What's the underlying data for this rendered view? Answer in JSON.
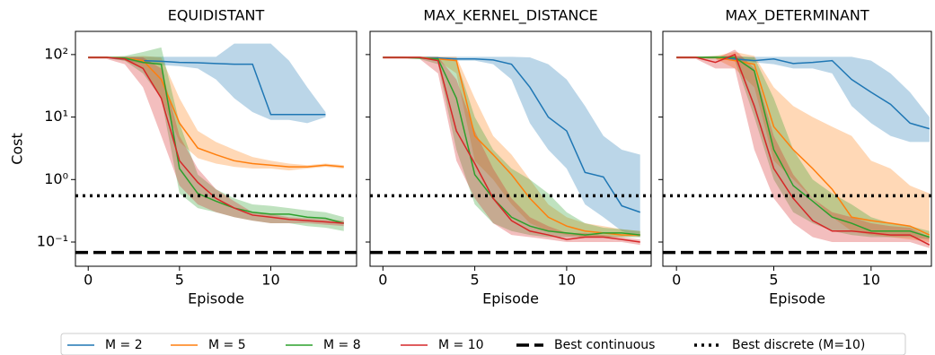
{
  "chart_data": [
    {
      "type": "line",
      "title": "EQUIDISTANT",
      "y_label": "Cost",
      "x_label": "Episode",
      "log_y": true,
      "x": [
        0,
        1,
        2,
        3,
        4,
        5,
        6,
        7,
        8,
        9,
        10,
        11,
        12,
        13,
        14
      ],
      "xlim": [
        -0.7,
        14.7
      ],
      "xticks": [
        0,
        5,
        10
      ],
      "ylim": [
        0.041,
        235
      ],
      "yticks": [
        {
          "value": 0.1,
          "label": "10⁻¹"
        },
        {
          "value": 1,
          "label": "10⁰"
        },
        {
          "value": 10,
          "label": "10¹"
        },
        {
          "value": 100,
          "label": "10²"
        }
      ],
      "hlines": [
        {
          "name": "Best continuous",
          "value": 0.068,
          "style": "dashed"
        },
        {
          "name": "Best discrete (M=10)",
          "value": 0.55,
          "style": "dotted"
        }
      ],
      "series": [
        {
          "name": "M = 2",
          "color": "#1f77b4",
          "values": [
            90,
            90,
            85,
            80,
            78,
            75,
            74,
            72,
            70,
            70,
            11,
            11,
            11,
            11,
            null
          ],
          "lower": [
            88,
            88,
            80,
            72,
            68,
            65,
            60,
            40,
            20,
            12,
            9,
            9,
            8,
            10,
            null
          ],
          "upper": [
            92,
            92,
            92,
            92,
            92,
            92,
            92,
            92,
            150,
            150,
            150,
            80,
            30,
            12,
            null
          ]
        },
        {
          "name": "M = 5",
          "color": "#ff7f0e",
          "values": [
            90,
            90,
            88,
            80,
            40,
            8,
            3.2,
            2.5,
            2,
            1.8,
            1.7,
            1.6,
            1.6,
            1.7,
            1.6
          ],
          "lower": [
            88,
            88,
            80,
            60,
            20,
            4,
            2.2,
            1.8,
            1.6,
            1.5,
            1.5,
            1.4,
            1.5,
            1.6,
            1.5
          ],
          "upper": [
            92,
            92,
            92,
            95,
            90,
            20,
            6,
            4,
            3,
            2.3,
            2,
            1.8,
            1.7,
            1.8,
            1.7
          ]
        },
        {
          "name": "M = 8",
          "color": "#2ca02c",
          "values": [
            90,
            90,
            88,
            75,
            70,
            1.5,
            0.6,
            0.45,
            0.35,
            0.3,
            0.28,
            0.28,
            0.25,
            0.24,
            0.2
          ],
          "lower": [
            88,
            88,
            80,
            50,
            20,
            0.6,
            0.35,
            0.3,
            0.25,
            0.22,
            0.2,
            0.2,
            0.18,
            0.17,
            0.15
          ],
          "upper": [
            92,
            92,
            95,
            110,
            130,
            8,
            1.2,
            0.7,
            0.5,
            0.4,
            0.38,
            0.35,
            0.32,
            0.3,
            0.25
          ]
        },
        {
          "name": "M = 10",
          "color": "#d62728",
          "values": [
            90,
            90,
            85,
            60,
            20,
            2,
            0.9,
            0.5,
            0.35,
            0.27,
            0.25,
            0.23,
            0.22,
            0.21,
            0.2
          ],
          "lower": [
            85,
            85,
            70,
            30,
            5,
            0.8,
            0.4,
            0.3,
            0.25,
            0.22,
            0.2,
            0.2,
            0.2,
            0.19,
            0.18
          ],
          "upper": [
            92,
            92,
            92,
            90,
            60,
            5,
            1.5,
            0.7,
            0.45,
            0.3,
            0.28,
            0.25,
            0.24,
            0.23,
            0.22
          ]
        }
      ]
    },
    {
      "type": "line",
      "title": "MAX_KERNEL_DISTANCE",
      "x_label": "Episode",
      "log_y": true,
      "x": [
        0,
        1,
        2,
        3,
        4,
        5,
        6,
        7,
        8,
        9,
        10,
        11,
        12,
        13,
        14
      ],
      "xlim": [
        -0.7,
        14.6
      ],
      "xticks": [
        0,
        5,
        10
      ],
      "ylim": [
        0.041,
        235
      ],
      "yticks": [
        0.1,
        1,
        10,
        100
      ],
      "hlines": [
        {
          "name": "Best continuous",
          "value": 0.068,
          "style": "dashed"
        },
        {
          "name": "Best discrete (M=10)",
          "value": 0.55,
          "style": "dotted"
        }
      ],
      "series": [
        {
          "name": "M = 2",
          "color": "#1f77b4",
          "values": [
            90,
            90,
            90,
            88,
            85,
            85,
            82,
            70,
            30,
            10,
            6,
            1.3,
            1.1,
            0.38,
            0.3
          ],
          "lower": [
            88,
            88,
            88,
            85,
            80,
            80,
            70,
            40,
            8,
            3,
            1.5,
            0.4,
            0.25,
            0.15,
            0.12
          ],
          "upper": [
            92,
            92,
            92,
            92,
            92,
            92,
            92,
            92,
            90,
            70,
            40,
            15,
            5,
            3,
            2.5
          ]
        },
        {
          "name": "M = 5",
          "color": "#ff7f0e",
          "values": [
            90,
            90,
            90,
            85,
            80,
            5,
            2.5,
            1.2,
            0.5,
            0.25,
            0.18,
            0.15,
            0.14,
            0.13,
            0.13
          ],
          "lower": [
            88,
            88,
            88,
            80,
            50,
            2,
            1,
            0.4,
            0.2,
            0.15,
            0.13,
            0.12,
            0.12,
            0.12,
            0.12
          ],
          "upper": [
            92,
            92,
            92,
            92,
            92,
            20,
            5,
            2.5,
            1,
            0.4,
            0.25,
            0.2,
            0.18,
            0.16,
            0.15
          ]
        },
        {
          "name": "M = 8",
          "color": "#2ca02c",
          "values": [
            90,
            90,
            88,
            85,
            20,
            1.2,
            0.5,
            0.25,
            0.18,
            0.15,
            0.14,
            0.13,
            0.14,
            0.14,
            0.13
          ],
          "lower": [
            88,
            88,
            85,
            70,
            3,
            0.4,
            0.2,
            0.15,
            0.13,
            0.12,
            0.12,
            0.12,
            0.12,
            0.12,
            0.12
          ],
          "upper": [
            92,
            92,
            92,
            92,
            80,
            10,
            3,
            1.5,
            1,
            0.6,
            0.3,
            0.2,
            0.17,
            0.16,
            0.15
          ]
        },
        {
          "name": "M = 10",
          "color": "#d62728",
          "values": [
            90,
            90,
            90,
            80,
            6,
            1.8,
            0.5,
            0.22,
            0.15,
            0.13,
            0.11,
            0.12,
            0.12,
            0.11,
            0.1
          ],
          "lower": [
            85,
            85,
            85,
            50,
            2,
            0.5,
            0.2,
            0.13,
            0.12,
            0.11,
            0.1,
            0.1,
            0.1,
            0.1,
            0.09
          ],
          "upper": [
            92,
            92,
            92,
            92,
            40,
            6,
            1.5,
            0.5,
            0.25,
            0.18,
            0.14,
            0.14,
            0.13,
            0.12,
            0.11
          ]
        }
      ]
    },
    {
      "type": "line",
      "title": "MAX_DETERMINANT",
      "x_label": "Episode",
      "log_y": true,
      "x": [
        0,
        1,
        2,
        3,
        4,
        5,
        6,
        7,
        8,
        9,
        10,
        11,
        12,
        13
      ],
      "xlim": [
        -0.7,
        13.1
      ],
      "xticks": [
        0,
        5,
        10
      ],
      "ylim": [
        0.041,
        235
      ],
      "yticks": [
        0.1,
        1,
        10,
        100
      ],
      "hlines": [
        {
          "name": "Best continuous",
          "value": 0.068,
          "style": "dashed"
        },
        {
          "name": "Best discrete (M=10)",
          "value": 0.55,
          "style": "dotted"
        }
      ],
      "series": [
        {
          "name": "M = 2",
          "color": "#1f77b4",
          "values": [
            90,
            90,
            90,
            85,
            80,
            85,
            72,
            75,
            80,
            40,
            25,
            16,
            8,
            6.5
          ],
          "lower": [
            88,
            88,
            88,
            80,
            75,
            70,
            60,
            60,
            50,
            15,
            8,
            5,
            4,
            4
          ],
          "upper": [
            92,
            92,
            92,
            92,
            92,
            92,
            92,
            92,
            92,
            92,
            80,
            50,
            25,
            10
          ]
        },
        {
          "name": "M = 5",
          "color": "#ff7f0e",
          "values": [
            90,
            90,
            90,
            80,
            70,
            7,
            3,
            1.5,
            0.7,
            0.25,
            0.22,
            0.2,
            0.18,
            0.13
          ],
          "lower": [
            88,
            88,
            85,
            60,
            30,
            2,
            1,
            0.5,
            0.25,
            0.15,
            0.13,
            0.12,
            0.11,
            0.1
          ],
          "upper": [
            92,
            92,
            95,
            110,
            95,
            30,
            15,
            10,
            7,
            5,
            2,
            1.5,
            0.8,
            0.6
          ]
        },
        {
          "name": "M = 8",
          "color": "#2ca02c",
          "values": [
            90,
            90,
            90,
            90,
            55,
            3,
            0.8,
            0.45,
            0.25,
            0.2,
            0.15,
            0.15,
            0.15,
            0.12
          ],
          "lower": [
            88,
            88,
            85,
            80,
            10,
            1,
            0.3,
            0.2,
            0.15,
            0.13,
            0.12,
            0.12,
            0.12,
            0.11
          ],
          "upper": [
            92,
            92,
            95,
            95,
            90,
            20,
            3,
            1,
            0.6,
            0.4,
            0.25,
            0.2,
            0.18,
            0.15
          ]
        },
        {
          "name": "M = 10",
          "color": "#d62728",
          "values": [
            90,
            90,
            75,
            100,
            15,
            1.5,
            0.5,
            0.22,
            0.15,
            0.15,
            0.14,
            0.13,
            0.13,
            0.09
          ],
          "lower": [
            85,
            85,
            60,
            60,
            3,
            0.5,
            0.2,
            0.12,
            0.1,
            0.1,
            0.1,
            0.1,
            0.1,
            0.08
          ],
          "upper": [
            92,
            92,
            85,
            120,
            60,
            5,
            1.2,
            0.5,
            0.3,
            0.25,
            0.2,
            0.18,
            0.17,
            0.12
          ]
        }
      ]
    }
  ]
}
